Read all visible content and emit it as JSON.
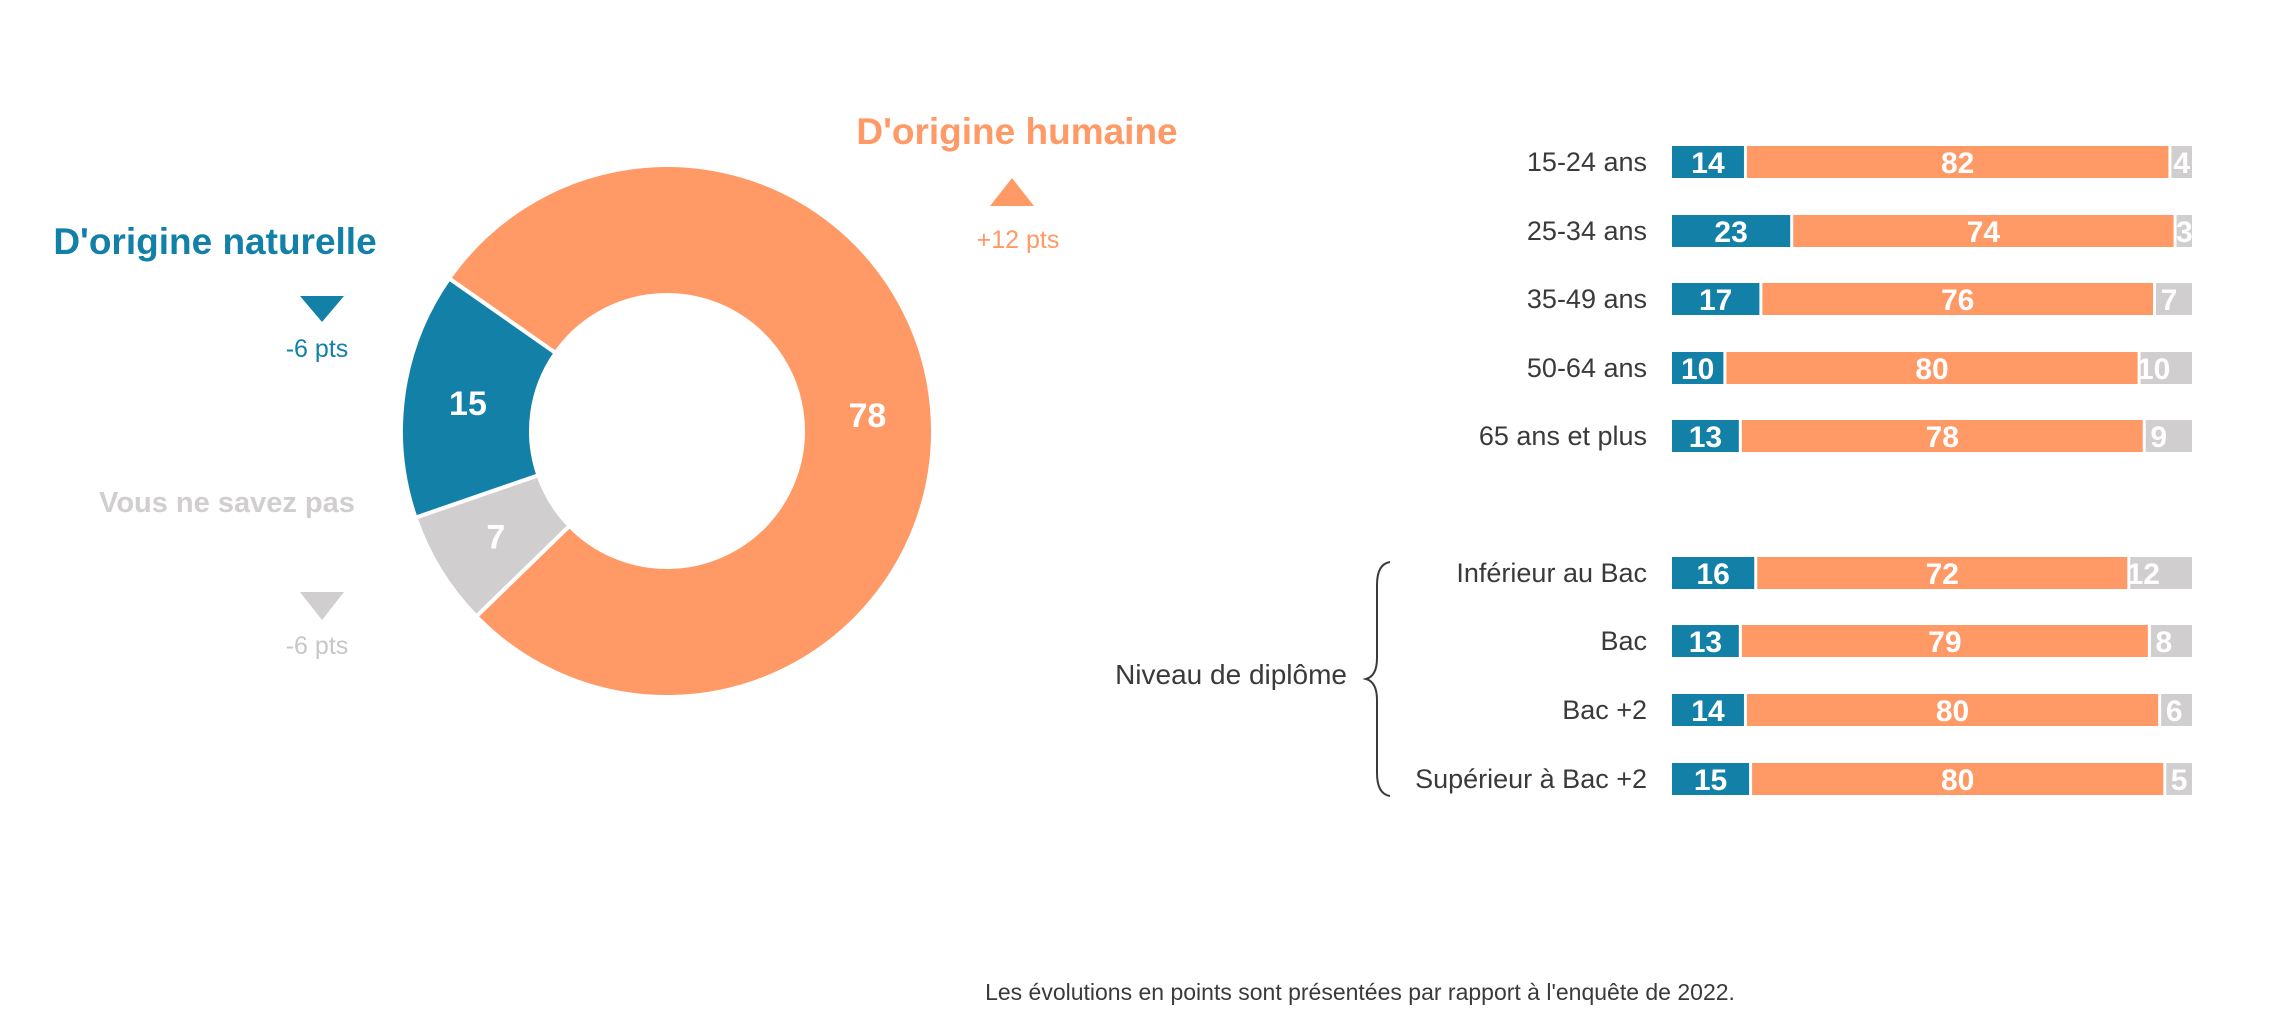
{
  "colors": {
    "naturelle": "#1380A8",
    "humaine": "#FF9966",
    "nsp": "#D0CECE",
    "text": "#3A3A3A"
  },
  "donut": {
    "labels": {
      "naturelle": "D'origine naturelle",
      "humaine": "D'origine humaine",
      "nsp": "Vous ne savez pas"
    },
    "changes": {
      "naturelle": {
        "text": "-6 pts",
        "direction": "down"
      },
      "humaine": {
        "text": "+12 pts",
        "direction": "up"
      },
      "nsp": {
        "text": "-6 pts",
        "direction": "down"
      }
    }
  },
  "chart_data": [
    {
      "type": "pie",
      "categories": [
        "D'origine naturelle",
        "D'origine humaine",
        "Vous ne savez pas"
      ],
      "values": [
        15,
        78,
        7
      ],
      "hole": true
    },
    {
      "type": "bar",
      "orientation": "horizontal",
      "stacked": true,
      "groups": [
        {
          "label": "",
          "categories": [
            "15-24 ans",
            "25-34 ans",
            "35-49 ans",
            "50-64 ans",
            "65 ans et plus"
          ]
        },
        {
          "label": "Niveau de diplôme",
          "categories": [
            "Inférieur au Bac",
            "Bac",
            "Bac +2",
            "Supérieur à Bac +2"
          ]
        }
      ],
      "categories": [
        "15-24 ans",
        "25-34 ans",
        "35-49 ans",
        "50-64 ans",
        "65 ans et plus",
        "Inférieur au Bac",
        "Bac",
        "Bac +2",
        "Supérieur à Bac +2"
      ],
      "series": [
        {
          "key": "naturelle",
          "values": [
            14,
            23,
            17,
            10,
            13,
            16,
            13,
            14,
            15
          ]
        },
        {
          "key": "humaine",
          "values": [
            82,
            74,
            76,
            80,
            78,
            72,
            79,
            80,
            80
          ]
        },
        {
          "key": "nsp",
          "values": [
            4,
            3,
            7,
            10,
            9,
            12,
            8,
            6,
            5
          ]
        }
      ]
    }
  ],
  "footnote": "Les évolutions en points sont présentées par rapport à l'enquête de 2022."
}
